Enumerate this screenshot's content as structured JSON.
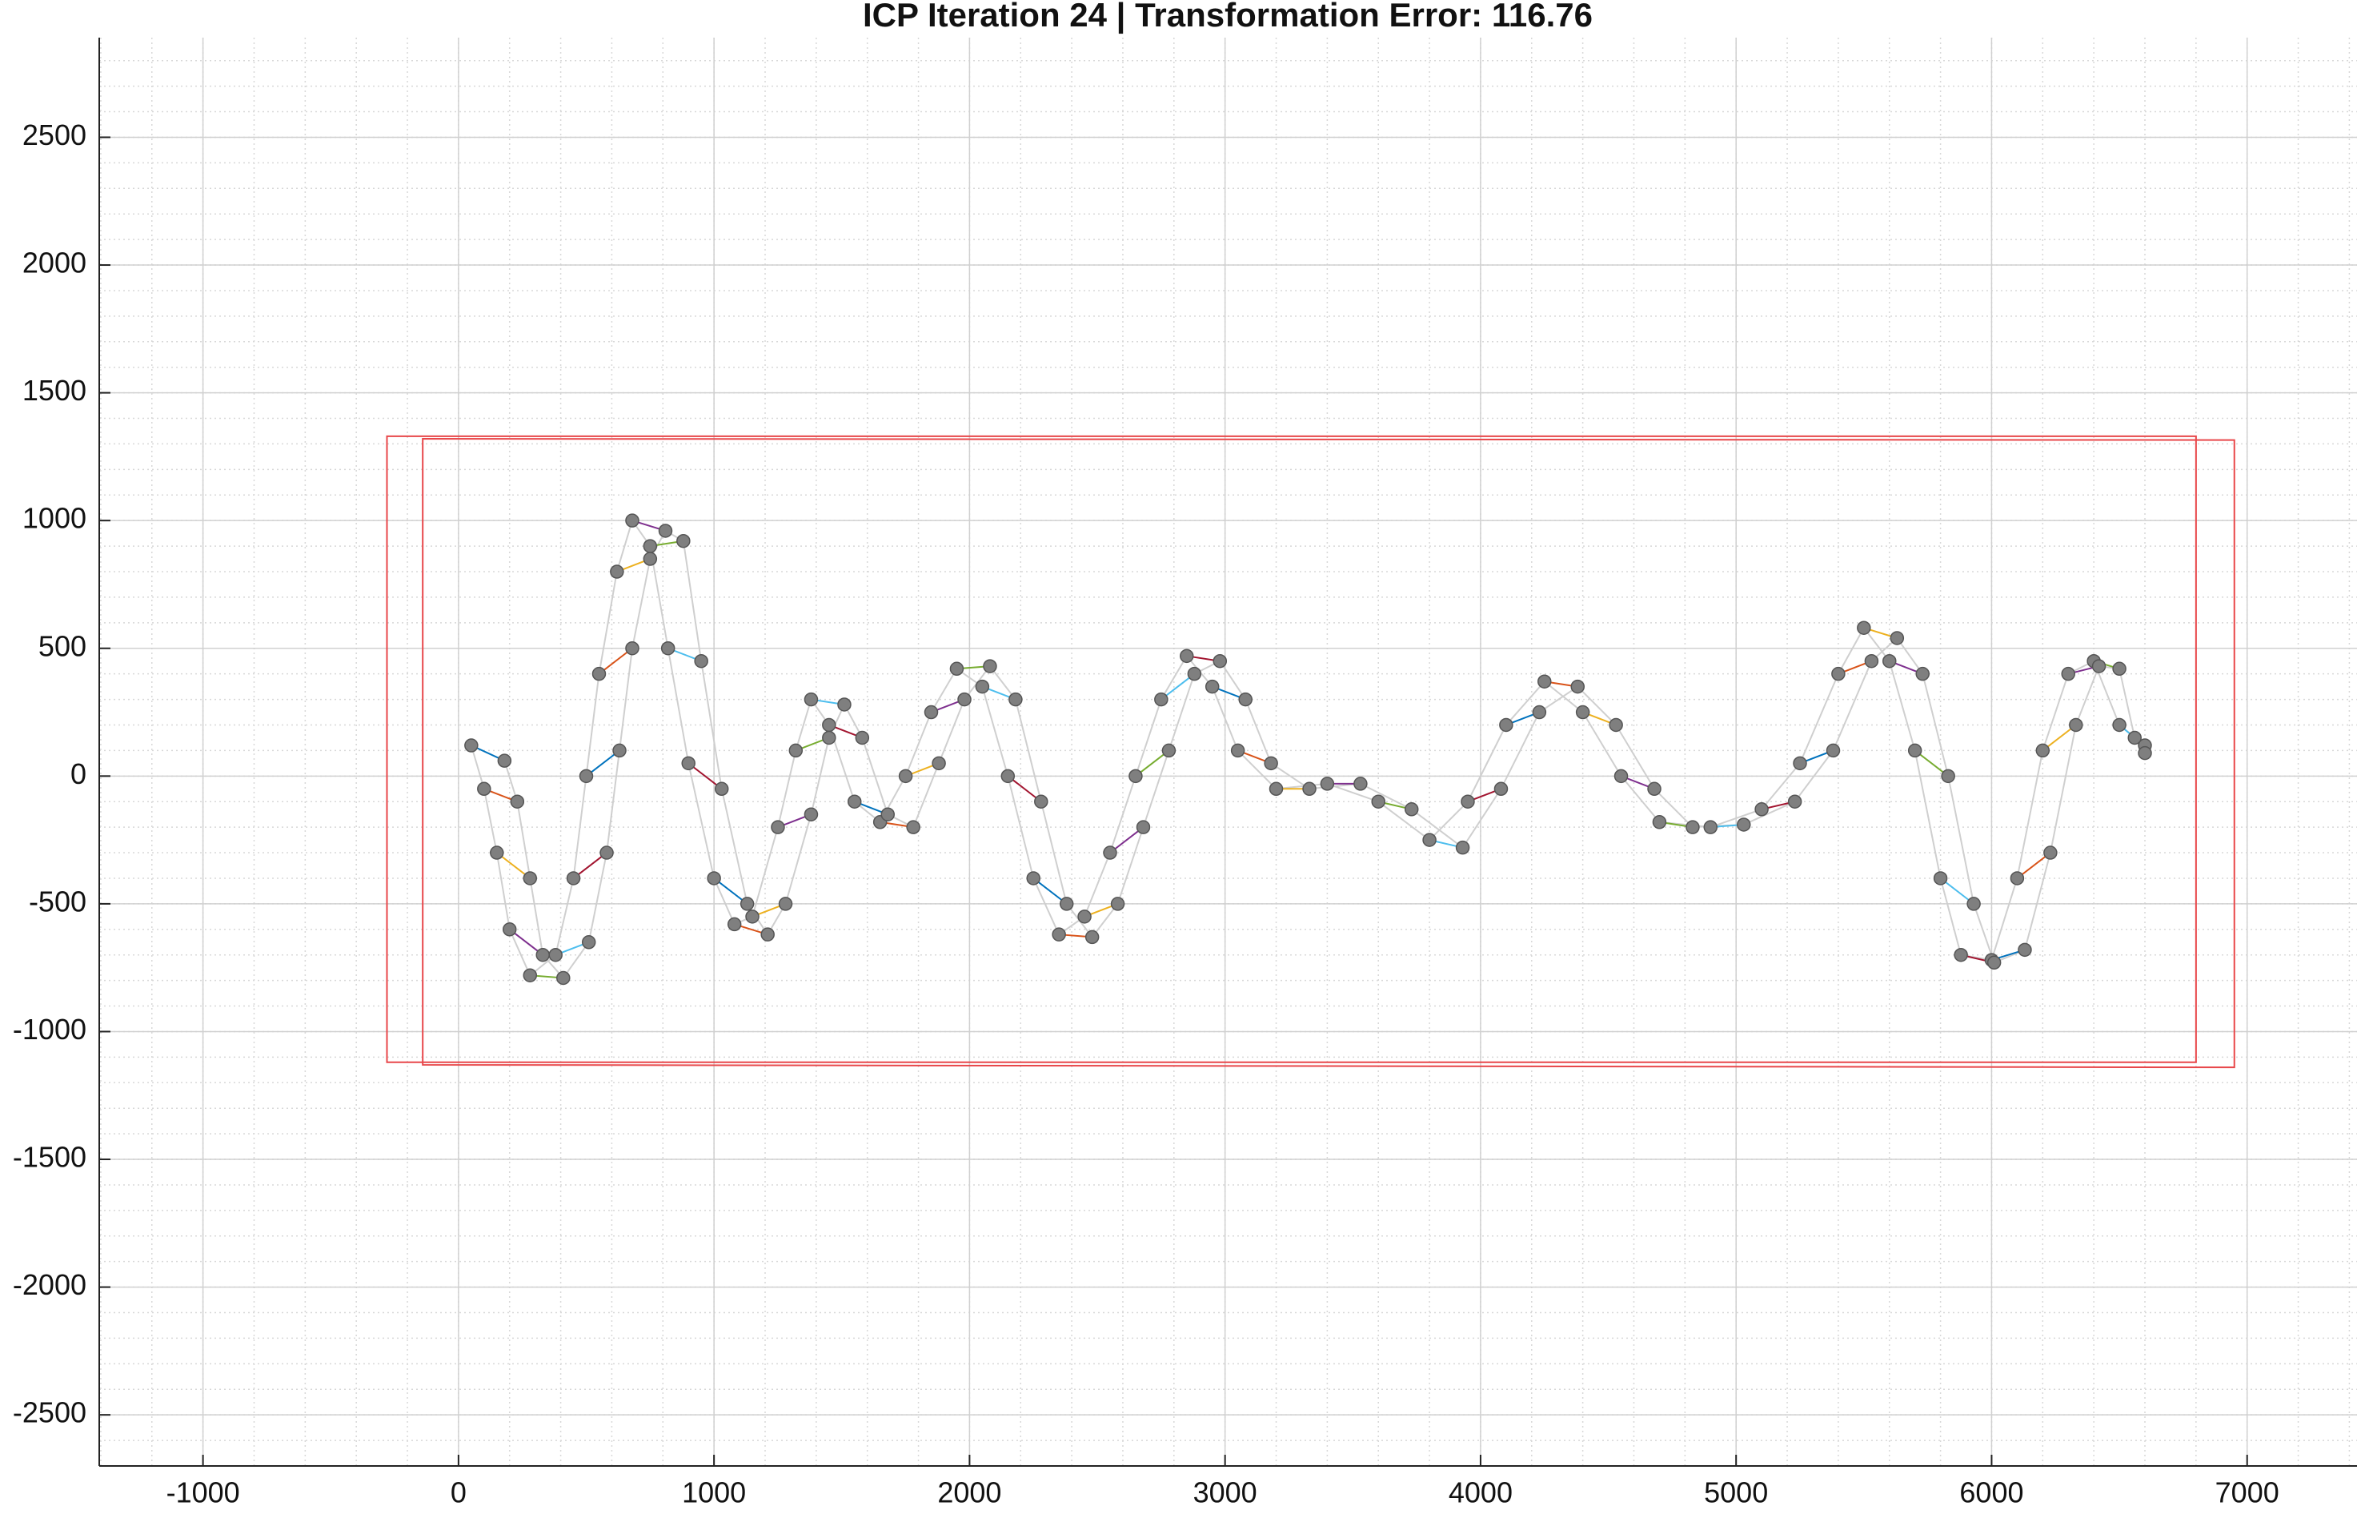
{
  "chart_data": {
    "type": "scatter",
    "title": "ICP Iteration 24 | Transformation Error: 116.76",
    "xlim": [
      -1406,
      7430
    ],
    "ylim": [
      -2700,
      2890
    ],
    "xticks": [
      -1000,
      0,
      1000,
      2000,
      3000,
      4000,
      5000,
      6000,
      7000
    ],
    "yticks": [
      -2500,
      -2000,
      -1500,
      -1000,
      -500,
      0,
      500,
      1000,
      1500,
      2000,
      2500
    ],
    "grid": true,
    "xminorticks": [
      -1400,
      -1200,
      -1000,
      -800,
      -600,
      -400,
      -200,
      0,
      200,
      400,
      600,
      800,
      1000,
      1200,
      1400,
      1600,
      1800,
      2000,
      2200,
      2400,
      2600,
      2800,
      3000,
      3200,
      3400,
      3600,
      3800,
      4000,
      4200,
      4400,
      4600,
      4800,
      5000,
      5200,
      5400,
      5600,
      5800,
      6000,
      6200,
      6400,
      6600,
      6800,
      7000,
      7200,
      7400
    ],
    "yminorticks": [
      -2700,
      -2600,
      -2500,
      -2400,
      -2300,
      -2200,
      -2100,
      -2000,
      -1900,
      -1800,
      -1700,
      -1600,
      -1500,
      -1400,
      -1300,
      -1200,
      -1100,
      -1000,
      -900,
      -800,
      -700,
      -600,
      -500,
      -400,
      -300,
      -200,
      -100,
      0,
      100,
      200,
      300,
      400,
      500,
      600,
      700,
      800,
      900,
      1000,
      1100,
      1200,
      1300,
      1400,
      1500,
      1600,
      1700,
      1800,
      1900,
      2000,
      2100,
      2200,
      2300,
      2400,
      2500,
      2600,
      2700,
      2800
    ],
    "series": [
      {
        "color": "#7f7f7f",
        "x": [
          50,
          100,
          150,
          200,
          280,
          380,
          450,
          500,
          550,
          620,
          680,
          750,
          820,
          900,
          1000,
          1080,
          1150,
          1250,
          1320,
          1380,
          1450,
          1550,
          1650,
          1750,
          1850,
          1950,
          2050,
          2150,
          2250,
          2350,
          2450,
          2550,
          2650,
          2750,
          2850,
          2950,
          3050,
          3200,
          3400,
          3600,
          3800,
          3950,
          4100,
          4250,
          4400,
          4550,
          4700,
          4900,
          5100,
          5250,
          5400,
          5500,
          5600,
          5700,
          5800,
          5880,
          6000,
          6100,
          6200,
          6300,
          6400,
          6500,
          6600
        ],
        "y": [
          120,
          -50,
          -300,
          -600,
          -780,
          -700,
          -400,
          0,
          400,
          800,
          1000,
          900,
          500,
          50,
          -400,
          -580,
          -550,
          -200,
          100,
          300,
          200,
          -100,
          -180,
          0,
          250,
          420,
          350,
          0,
          -400,
          -620,
          -550,
          -300,
          0,
          300,
          470,
          350,
          100,
          -50,
          -30,
          -100,
          -250,
          -100,
          200,
          370,
          250,
          0,
          -180,
          -200,
          -130,
          50,
          400,
          580,
          450,
          100,
          -400,
          -700,
          -720,
          -400,
          100,
          400,
          450,
          200,
          120
        ]
      },
      {
        "color": "#7f7f7f",
        "x": [
          180,
          230,
          280,
          330,
          410,
          510,
          580,
          630,
          680,
          750,
          810,
          880,
          950,
          1030,
          1130,
          1210,
          1280,
          1380,
          1450,
          1510,
          1580,
          1680,
          1780,
          1880,
          1980,
          2080,
          2180,
          2280,
          2380,
          2480,
          2580,
          2680,
          2780,
          2880,
          2980,
          3080,
          3180,
          3330,
          3530,
          3730,
          3930,
          4080,
          4230,
          4380,
          4530,
          4680,
          4830,
          5030,
          5230,
          5380,
          5530,
          5630,
          5730,
          5830,
          5930,
          6010,
          6130,
          6230,
          6330,
          6420,
          6500,
          6560,
          6600
        ],
        "y": [
          60,
          -100,
          -400,
          -700,
          -790,
          -650,
          -300,
          100,
          500,
          850,
          960,
          920,
          450,
          -50,
          -500,
          -620,
          -500,
          -150,
          150,
          280,
          150,
          -150,
          -200,
          50,
          300,
          430,
          300,
          -100,
          -500,
          -630,
          -500,
          -200,
          100,
          400,
          450,
          300,
          50,
          -50,
          -30,
          -130,
          -280,
          -50,
          250,
          350,
          200,
          -50,
          -200,
          -190,
          -100,
          100,
          450,
          540,
          400,
          0,
          -500,
          -730,
          -680,
          -300,
          200,
          430,
          420,
          150,
          90
        ]
      }
    ],
    "link_colors": [
      "#0072bd",
      "#d95319",
      "#edb120",
      "#7e2f8e",
      "#77ac30",
      "#4dbeee",
      "#a2142f"
    ],
    "boxes": [
      {
        "color": "#e8474a",
        "x": [
          -280,
          6800,
          6800,
          -280
        ],
        "y": [
          1330,
          1330,
          -1120,
          -1120
        ]
      },
      {
        "color": "#e8474a",
        "x": [
          -140,
          6950,
          6950,
          -140
        ],
        "y": [
          1320,
          1315,
          -1140,
          -1130
        ]
      }
    ]
  }
}
